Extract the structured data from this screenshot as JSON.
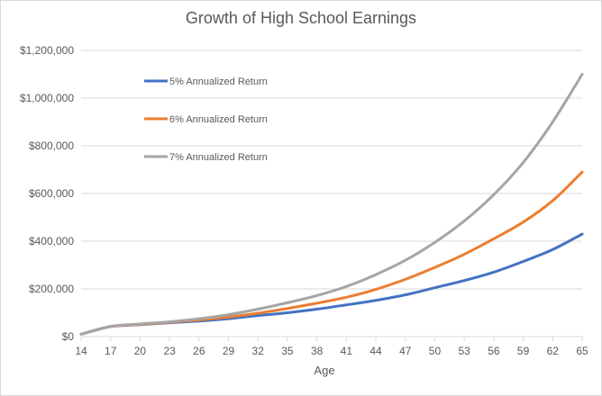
{
  "chart_data": {
    "type": "line",
    "title": "Growth of High School Earnings",
    "xlabel": "Age",
    "ylabel": "",
    "ylim": [
      0,
      1200000
    ],
    "y_ticks": [
      0,
      200000,
      400000,
      600000,
      800000,
      1000000,
      1200000
    ],
    "y_tick_labels": [
      "$0",
      "$200,000",
      "$400,000",
      "$600,000",
      "$800,000",
      "$1,000,000",
      "$1,200,000"
    ],
    "x_ticks": [
      14,
      17,
      20,
      23,
      26,
      29,
      32,
      35,
      38,
      41,
      44,
      47,
      50,
      53,
      56,
      59,
      62,
      65
    ],
    "grid": "horizontal",
    "legend_position": "top-left",
    "x": [
      14,
      17,
      20,
      23,
      26,
      29,
      32,
      35,
      38,
      41,
      44,
      47,
      50,
      53,
      56,
      59,
      62,
      65
    ],
    "series": [
      {
        "name": "5% Annualized Return",
        "color": "#4472c4",
        "values": [
          10000,
          42000,
          50000,
          58000,
          65000,
          75000,
          88000,
          100000,
          115000,
          133000,
          152000,
          175000,
          205000,
          235000,
          270000,
          315000,
          365000,
          430000
        ]
      },
      {
        "name": "6% Annualized Return",
        "color": "#ed7d31",
        "values": [
          10000,
          42000,
          51000,
          60000,
          70000,
          82000,
          98000,
          118000,
          140000,
          165000,
          198000,
          240000,
          290000,
          345000,
          410000,
          480000,
          570000,
          690000
        ]
      },
      {
        "name": "7% Annualized Return",
        "color": "#a5a5a5",
        "values": [
          10000,
          43000,
          53000,
          62000,
          75000,
          92000,
          115000,
          142000,
          172000,
          210000,
          260000,
          320000,
          395000,
          485000,
          595000,
          730000,
          900000,
          1100000
        ]
      }
    ]
  }
}
